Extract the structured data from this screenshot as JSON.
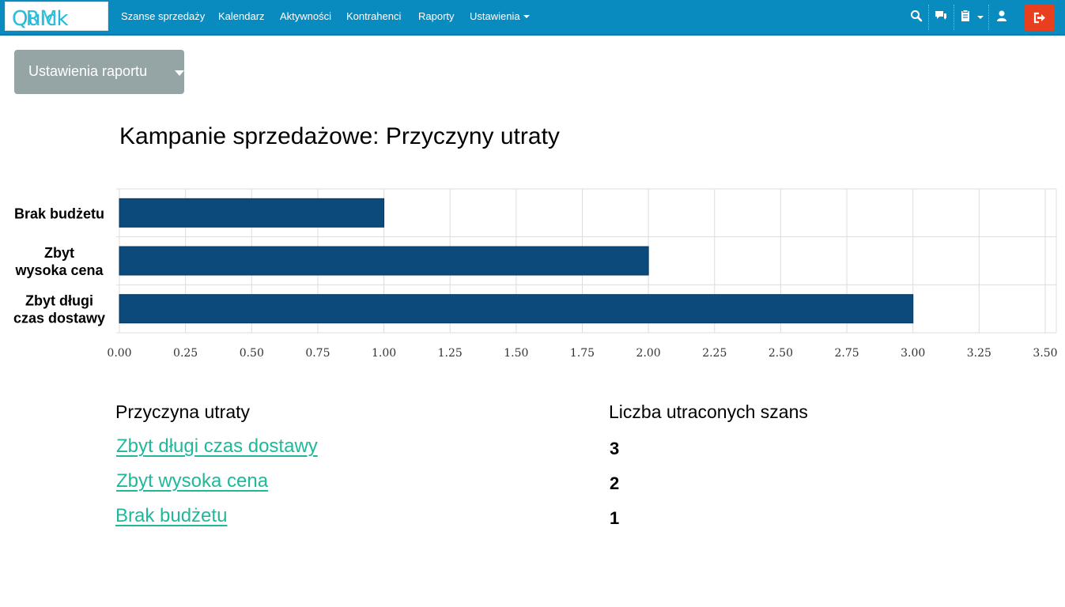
{
  "navbar": {
    "brand_part1": "Quick",
    "brand_part2": "CRM",
    "items": [
      "Szanse sprzedaży",
      "Kalendarz",
      "Aktywności",
      "Kontrahenci",
      "Raporty",
      "Ustawienia"
    ],
    "icons": [
      "search-icon",
      "chat-icon",
      "clipboard-icon",
      "user-icon",
      "logout-icon"
    ],
    "logout_color": "#e8401f",
    "bar_color": "#0a8bbf"
  },
  "report_settings_label": "Ustawienia raportu",
  "report_title": "Kampanie sprzedażowe: Przyczyny utraty",
  "chart_data": {
    "type": "bar",
    "orientation": "horizontal",
    "title": "",
    "categories": [
      "Brak budżetu",
      "Zbyt wysoka cena",
      "Zbyt długi czas dostawy"
    ],
    "category_lines": [
      [
        "Brak budżetu"
      ],
      [
        "Zbyt",
        "wysoka cena"
      ],
      [
        "Zbyt długi",
        "czas dostawy"
      ]
    ],
    "values": [
      1,
      2,
      3
    ],
    "xlim": [
      0,
      3.5
    ],
    "ticks": [
      "0.00",
      "0.25",
      "0.50",
      "0.75",
      "1.00",
      "1.25",
      "1.50",
      "1.75",
      "2.00",
      "2.25",
      "2.50",
      "2.75",
      "3.00",
      "3.25",
      "3.50"
    ],
    "bar_color": "#0b4a7b",
    "grid": true,
    "xlabel": "",
    "ylabel": ""
  },
  "table": {
    "headers": [
      "Przyczyna utraty",
      "Liczba utraconych szans"
    ],
    "rows": [
      {
        "reason": "Zbyt długi czas dostawy",
        "count": "3"
      },
      {
        "reason": "Zbyt wysoka cena",
        "count": "2"
      },
      {
        "reason": "Brak budżetu",
        "count": "1"
      }
    ]
  }
}
